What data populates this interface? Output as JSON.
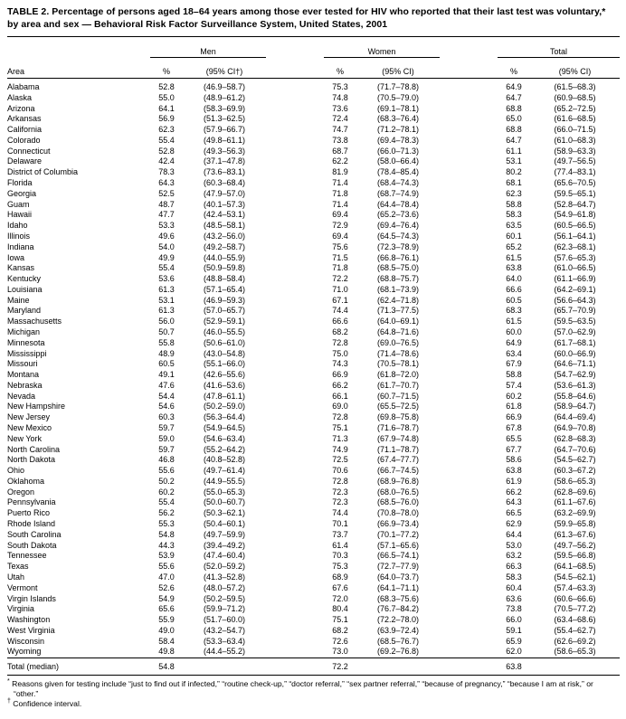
{
  "title": {
    "line1": "TABLE 2. Percentage of persons aged 18–64 years among those ever tested for HIV who reported that their last test was voluntary,*",
    "line2": "by area and sex — Behavioral Risk Factor Surveillance System, United States, 2001"
  },
  "table": {
    "area_header": "Area",
    "groups": [
      {
        "label": "Men",
        "pct_header": "%",
        "ci_header": "(95% CI†)"
      },
      {
        "label": "Women",
        "pct_header": "%",
        "ci_header": "(95% CI)"
      },
      {
        "label": "Total",
        "pct_header": "%",
        "ci_header": "(95% CI)"
      }
    ],
    "rows": [
      [
        "Alabama",
        "52.8",
        "(46.9–58.7)",
        "75.3",
        "(71.7–78.8)",
        "64.9",
        "(61.5–68.3)"
      ],
      [
        "Alaska",
        "55.0",
        "(48.9–61.2)",
        "74.8",
        "(70.5–79.0)",
        "64.7",
        "(60.9–68.5)"
      ],
      [
        "Arizona",
        "64.1",
        "(58.3–69.9)",
        "73.6",
        "(69.1–78.1)",
        "68.8",
        "(65.2–72.5)"
      ],
      [
        "Arkansas",
        "56.9",
        "(51.3–62.5)",
        "72.4",
        "(68.3–76.4)",
        "65.0",
        "(61.6–68.5)"
      ],
      [
        "California",
        "62.3",
        "(57.9–66.7)",
        "74.7",
        "(71.2–78.1)",
        "68.8",
        "(66.0–71.5)"
      ],
      [
        "Colorado",
        "55.4",
        "(49.8–61.1)",
        "73.8",
        "(69.4–78.3)",
        "64.7",
        "(61.0–68.3)"
      ],
      [
        "Connecticut",
        "52.8",
        "(49.3–56.3)",
        "68.7",
        "(66.0–71.3)",
        "61.1",
        "(58.9–63.3)"
      ],
      [
        "Delaware",
        "42.4",
        "(37.1–47.8)",
        "62.2",
        "(58.0–66.4)",
        "53.1",
        "(49.7–56.5)"
      ],
      [
        "District of Columbia",
        "78.3",
        "(73.6–83.1)",
        "81.9",
        "(78.4–85.4)",
        "80.2",
        "(77.4–83.1)"
      ],
      [
        "Florida",
        "64.3",
        "(60.3–68.4)",
        "71.4",
        "(68.4–74.3)",
        "68.1",
        "(65.6–70.5)"
      ],
      [
        "Georgia",
        "52.5",
        "(47.9–57.0)",
        "71.8",
        "(68.7–74.9)",
        "62.3",
        "(59.5–65.1)"
      ],
      [
        "Guam",
        "48.7",
        "(40.1–57.3)",
        "71.4",
        "(64.4–78.4)",
        "58.8",
        "(52.8–64.7)"
      ],
      [
        "Hawaii",
        "47.7",
        "(42.4–53.1)",
        "69.4",
        "(65.2–73.6)",
        "58.3",
        "(54.9–61.8)"
      ],
      [
        "Idaho",
        "53.3",
        "(48.5–58.1)",
        "72.9",
        "(69.4–76.4)",
        "63.5",
        "(60.5–66.5)"
      ],
      [
        "Illinois",
        "49.6",
        "(43.2–56.0)",
        "69.4",
        "(64.5–74.3)",
        "60.1",
        "(56.1–64.1)"
      ],
      [
        "Indiana",
        "54.0",
        "(49.2–58.7)",
        "75.6",
        "(72.3–78.9)",
        "65.2",
        "(62.3–68.1)"
      ],
      [
        "Iowa",
        "49.9",
        "(44.0–55.9)",
        "71.5",
        "(66.8–76.1)",
        "61.5",
        "(57.6–65.3)"
      ],
      [
        "Kansas",
        "55.4",
        "(50.9–59.8)",
        "71.8",
        "(68.5–75.0)",
        "63.8",
        "(61.0–66.5)"
      ],
      [
        "Kentucky",
        "53.6",
        "(48.8–58.4)",
        "72.2",
        "(68.8–75.7)",
        "64.0",
        "(61.1–66.9)"
      ],
      [
        "Louisiana",
        "61.3",
        "(57.1–65.4)",
        "71.0",
        "(68.1–73.9)",
        "66.6",
        "(64.2–69.1)"
      ],
      [
        "Maine",
        "53.1",
        "(46.9–59.3)",
        "67.1",
        "(62.4–71.8)",
        "60.5",
        "(56.6–64.3)"
      ],
      [
        "Maryland",
        "61.3",
        "(57.0–65.7)",
        "74.4",
        "(71.3–77.5)",
        "68.3",
        "(65.7–70.9)"
      ],
      [
        "Massachusetts",
        "56.0",
        "(52.9–59.1)",
        "66.6",
        "(64.0–69.1)",
        "61.5",
        "(59.5–63.5)"
      ],
      [
        "Michigan",
        "50.7",
        "(46.0–55.5)",
        "68.2",
        "(64.8–71.6)",
        "60.0",
        "(57.0–62.9)"
      ],
      [
        "Minnesota",
        "55.8",
        "(50.6–61.0)",
        "72.8",
        "(69.0–76.5)",
        "64.9",
        "(61.7–68.1)"
      ],
      [
        "Mississippi",
        "48.9",
        "(43.0–54.8)",
        "75.0",
        "(71.4–78.6)",
        "63.4",
        "(60.0–66.9)"
      ],
      [
        "Missouri",
        "60.5",
        "(55.1–66.0)",
        "74.3",
        "(70.5–78.1)",
        "67.9",
        "(64.6–71.1)"
      ],
      [
        "Montana",
        "49.1",
        "(42.6–55.6)",
        "66.9",
        "(61.8–72.0)",
        "58.8",
        "(54.7–62.9)"
      ],
      [
        "Nebraska",
        "47.6",
        "(41.6–53.6)",
        "66.2",
        "(61.7–70.7)",
        "57.4",
        "(53.6–61.3)"
      ],
      [
        "Nevada",
        "54.4",
        "(47.8–61.1)",
        "66.1",
        "(60.7–71.5)",
        "60.2",
        "(55.8–64.6)"
      ],
      [
        "New Hampshire",
        "54.6",
        "(50.2–59.0)",
        "69.0",
        "(65.5–72.5)",
        "61.8",
        "(58.9–64.7)"
      ],
      [
        "New Jersey",
        "60.3",
        "(56.3–64.4)",
        "72.8",
        "(69.8–75.8)",
        "66.9",
        "(64.4–69.4)"
      ],
      [
        "New Mexico",
        "59.7",
        "(54.9–64.5)",
        "75.1",
        "(71.6–78.7)",
        "67.8",
        "(64.9–70.8)"
      ],
      [
        "New York",
        "59.0",
        "(54.6–63.4)",
        "71.3",
        "(67.9–74.8)",
        "65.5",
        "(62.8–68.3)"
      ],
      [
        "North Carolina",
        "59.7",
        "(55.2–64.2)",
        "74.9",
        "(71.1–78.7)",
        "67.7",
        "(64.7–70.6)"
      ],
      [
        "North Dakota",
        "46.8",
        "(40.8–52.8)",
        "72.5",
        "(67.4–77.7)",
        "58.6",
        "(54.5–62.7)"
      ],
      [
        "Ohio",
        "55.6",
        "(49.7–61.4)",
        "70.6",
        "(66.7–74.5)",
        "63.8",
        "(60.3–67.2)"
      ],
      [
        "Oklahoma",
        "50.2",
        "(44.9–55.5)",
        "72.8",
        "(68.9–76.8)",
        "61.9",
        "(58.6–65.3)"
      ],
      [
        "Oregon",
        "60.2",
        "(55.0–65.3)",
        "72.3",
        "(68.0–76.5)",
        "66.2",
        "(62.8–69.6)"
      ],
      [
        "Pennsylvania",
        "55.4",
        "(50.0–60.7)",
        "72.3",
        "(68.5–76.0)",
        "64.3",
        "(61.1–67.6)"
      ],
      [
        "Puerto Rico",
        "56.2",
        "(50.3–62.1)",
        "74.4",
        "(70.8–78.0)",
        "66.5",
        "(63.2–69.9)"
      ],
      [
        "Rhode Island",
        "55.3",
        "(50.4–60.1)",
        "70.1",
        "(66.9–73.4)",
        "62.9",
        "(59.9–65.8)"
      ],
      [
        "South Carolina",
        "54.8",
        "(49.7–59.9)",
        "73.7",
        "(70.1–77.2)",
        "64.4",
        "(61.3–67.6)"
      ],
      [
        "South Dakota",
        "44.3",
        "(39.4–49.2)",
        "61.4",
        "(57.1–65.6)",
        "53.0",
        "(49.7–56.2)"
      ],
      [
        "Tennessee",
        "53.9",
        "(47.4–60.4)",
        "70.3",
        "(66.5–74.1)",
        "63.2",
        "(59.5–66.8)"
      ],
      [
        "Texas",
        "55.6",
        "(52.0–59.2)",
        "75.3",
        "(72.7–77.9)",
        "66.3",
        "(64.1–68.5)"
      ],
      [
        "Utah",
        "47.0",
        "(41.3–52.8)",
        "68.9",
        "(64.0–73.7)",
        "58.3",
        "(54.5–62.1)"
      ],
      [
        "Vermont",
        "52.6",
        "(48.0–57.2)",
        "67.6",
        "(64.1–71.1)",
        "60.4",
        "(57.4–63.3)"
      ],
      [
        "Virgin Islands",
        "54.9",
        "(50.2–59.5)",
        "72.0",
        "(68.3–75.6)",
        "63.6",
        "(60.6–66.6)"
      ],
      [
        "Virginia",
        "65.6",
        "(59.9–71.2)",
        "80.4",
        "(76.7–84.2)",
        "73.8",
        "(70.5–77.2)"
      ],
      [
        "Washington",
        "55.9",
        "(51.7–60.0)",
        "75.1",
        "(72.2–78.0)",
        "66.0",
        "(63.4–68.6)"
      ],
      [
        "West Virginia",
        "49.0",
        "(43.2–54.7)",
        "68.2",
        "(63.9–72.4)",
        "59.1",
        "(55.4–62.7)"
      ],
      [
        "Wisconsin",
        "58.4",
        "(53.3–63.4)",
        "72.6",
        "(68.5–76.7)",
        "65.9",
        "(62.6–69.2)"
      ],
      [
        "Wyoming",
        "49.8",
        "(44.4–55.2)",
        "73.0",
        "(69.2–76.8)",
        "62.0",
        "(58.6–65.3)"
      ]
    ],
    "total_row": [
      "Total (median)",
      "54.8",
      "",
      "72.2",
      "",
      "63.8",
      ""
    ]
  },
  "footnotes": {
    "star_symbol": "*",
    "star_text": "Reasons given for testing include “just to find out if infected,” “routine check-up,” “doctor referral,” “sex partner referral,” “because of pregnancy,” “because I am at risk,” or “other.”",
    "dagger_symbol": "†",
    "dagger_text": "Confidence interval."
  }
}
